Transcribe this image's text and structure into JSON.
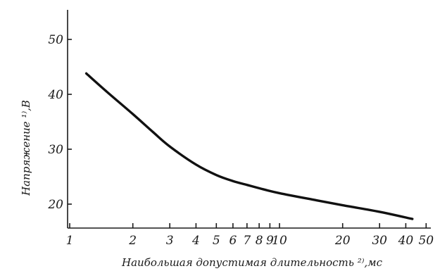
{
  "chart_data": {
    "type": "line",
    "title": "",
    "xlabel": "Наибольшая допустимая длительность ²⁾,мс",
    "ylabel": "Напряжение ¹⁾,В",
    "x_scale": "log",
    "xlim": [
      1,
      50
    ],
    "ylim": [
      15,
      58
    ],
    "x_ticks": [
      1,
      2,
      3,
      4,
      5,
      6,
      7,
      8,
      9,
      10,
      20,
      30,
      40,
      50
    ],
    "x_tick_labels": [
      "1",
      "2",
      "3",
      "4",
      "5",
      "6",
      "7",
      "8",
      "9",
      "10",
      "20",
      "30",
      "40",
      "50"
    ],
    "y_ticks": [
      20,
      30,
      40,
      50
    ],
    "y_tick_labels": [
      "20",
      "30",
      "40",
      "50"
    ],
    "grid": false,
    "series": [
      {
        "x": [
          1.2,
          1.5,
          2,
          2.5,
          3,
          4,
          5,
          6,
          7,
          8,
          10,
          15,
          20,
          30,
          43
        ],
        "y": [
          43.8,
          40.5,
          36.4,
          33.1,
          30.5,
          27.2,
          25.3,
          24.2,
          23.5,
          22.9,
          22.0,
          20.7,
          19.8,
          18.6,
          17.3
        ]
      }
    ]
  }
}
